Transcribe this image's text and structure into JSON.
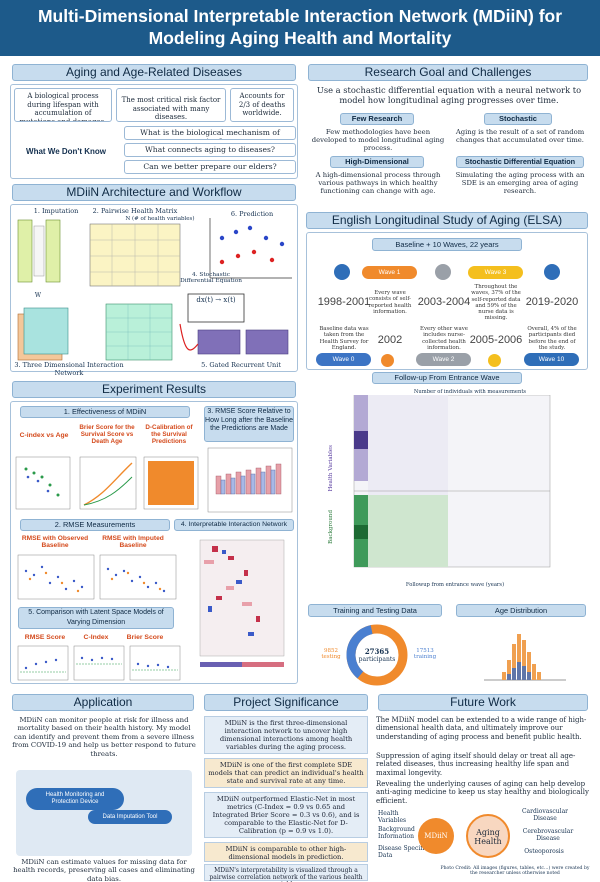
{
  "title": {
    "line1": "Multi-Dimensional Interpretable Interaction Network (MDiiN) for",
    "line2": "Modeling Aging Health and Mortality"
  },
  "aging": {
    "header": "Aging and Age-Related Diseases",
    "box1": "A biological process during lifespan with accumulation of mutations and damages.",
    "box2": "The most critical risk factor associated with many diseases.",
    "box3": "Accounts for 2/3 of deaths worldwide.",
    "unknown_label": "What We Don't Know",
    "q1": "What is the biological mechanism of aging?",
    "q2": "What connects aging to diseases?",
    "q3": "Can we better prepare our elders?"
  },
  "goal": {
    "header": "Research Goal and Challenges",
    "intro": "Use a stochastic differential equation with a neural network to model how longitudinal aging progresses over time.",
    "few_title": "Few Research",
    "few_text": "Few methodologies have been developed to model longitudinal aging process.",
    "stoch_title": "Stochastic",
    "stoch_text": "Aging is the result of a set of random changes that accumulated over time.",
    "hd_title": "High-Dimensional",
    "hd_text": "A high-dimensional process through various pathways in which healthy functioning can change with age.",
    "sde_title": "Stochastic Differential Equation",
    "sde_text": "Simulating the aging process with an SDE is an emerging area of aging research."
  },
  "arch": {
    "header": "MDiiN Architecture and Workflow",
    "l1": "1. Imputation",
    "l2": "2. Pairwise Health Matrix",
    "l2b": "N (# of health variables)",
    "l3": "3. Three Dimensional Interaction Network",
    "l4": "4. Stochastic Differential Equation",
    "l5": "5. Gated Recurrent Unit",
    "l6": "6. Prediction",
    "encoder": "Encoder",
    "decoder": "Decoder",
    "w": "W",
    "wt": "W",
    "eq": "dx(t) → x(t)"
  },
  "elsa": {
    "header": "English Longitudinal Study of Aging (ELSA)",
    "waves_bar": "Baseline + 10 Waves, 22 years",
    "waves": [
      {
        "label": "Wave 0",
        "year": "1998-2001",
        "text": "Baseline data was taken from the Health Survey for England."
      },
      {
        "label": "Wave 1",
        "year": "2002",
        "text": "Every wave consists of self-reported health information."
      },
      {
        "label": "Wave 2",
        "year": "2003-2004",
        "text": "Every other wave includes nurse-collected health information."
      },
      {
        "label": "Wave 3",
        "year": "2005-2006",
        "text": "Throughout the waves, 37% of the self-reported data and 59% of the nurse data is missing."
      },
      {
        "label": "Wave 10",
        "year": "2019-2020",
        "text": "Overall, 4% of the participants died before the end of the study."
      }
    ],
    "followup_title": "Follow-up From Entrance Wave",
    "followup_top": "Number of individuals with measurements",
    "followup_x": "Followup from entrance wave (years)",
    "followup_y1": "Health Variables",
    "followup_y2": "Background",
    "train_title": "Training and Testing Data",
    "participants": "27365",
    "participants_label": "participants",
    "testing": "9852 testing",
    "training": "17513 training",
    "age_title": "Age Distribution"
  },
  "exp": {
    "header": "Experiment Results",
    "s1": "1. Effectiveness of MDiiN",
    "c1": "C-index vs Age",
    "c2": "Brier Score for the Survival Score vs Death Age",
    "c3": "D-Calibration of the Survival Predictions",
    "s2": "2. RMSE Measurements",
    "r1": "RMSE with Observed Baseline",
    "r2": "RMSE with Imputed Baseline",
    "s3": "3. RMSE Score Relative to How Long after the Baseline the Predictions are Made",
    "s4": "4. Interpretable Interaction Network",
    "s5": "5. Comparison with Latent Space Models of Varying Dimension",
    "m1": "RMSE Score",
    "m2": "C-Index",
    "m3": "Brier Score"
  },
  "app": {
    "header": "Application",
    "text1": "MDiiN can monitor people at risk for illness and mortality based on their health history. My model can identify and prevent them from a severe illness from COVID-19 and help us better respond to future threats.",
    "tag1": "Health Monitoring and Protection Device",
    "tag2": "Data Imputation Tool",
    "text2": "MDiiN can estimate values for missing data for health records, preserving all cases and eliminating data bias."
  },
  "sig": {
    "header": "Project Significance",
    "items": [
      "MDiiN is the first three-dimensional interaction network to uncover high dimensional interactions among health variables during the aging process.",
      "MDiiN is one of the first complete SDE models that can predict an individual's health state and survival rate at any time.",
      "MDiiN outperformed Elastic-Net in most metrics (C-Index = 0.9 vs 0.65 and Integrated Brier Score = 0.3 vs 0.6), and is comparable to the Elastic-Net for D-Calibration (p = 0.9 vs 1.0).",
      "MDiiN is comparable to other high-dimensional models in prediction.",
      "MDiiN's interpretability is visualized through a pairwise correlation network of the various health variables."
    ]
  },
  "future": {
    "header": "Future Work",
    "p1": "The MDiiN model can be extended to a wide range of high-dimensional health data, and ultimately improve our understanding of aging process and benefit public health.",
    "p2": "Suppression of aging itself should delay or treat all age-related diseases, thus increasing healthy life span and maximal longevity.",
    "p3": "Revealing the underlying causes of aging can help develop anti-aging medicine to keep us stay healthy and biologically efficient.",
    "inputs": [
      "Health Variables",
      "Background Information",
      "Disease Specific Data"
    ],
    "center": "MDiiN",
    "aging": "Aging Health",
    "outputs": [
      "Cardiovascular Disease",
      "Cerebrovascular Disease",
      "Osteoporosis"
    ],
    "credit": "Photo Credit: All images (figures, tables, etc…) were created by the researcher unless otherwise noted"
  },
  "colors": {
    "banner": "#1d5a8a",
    "header_bg": "#c7dcee",
    "accent": "#d44a1c",
    "orange": "#f08a2c"
  }
}
